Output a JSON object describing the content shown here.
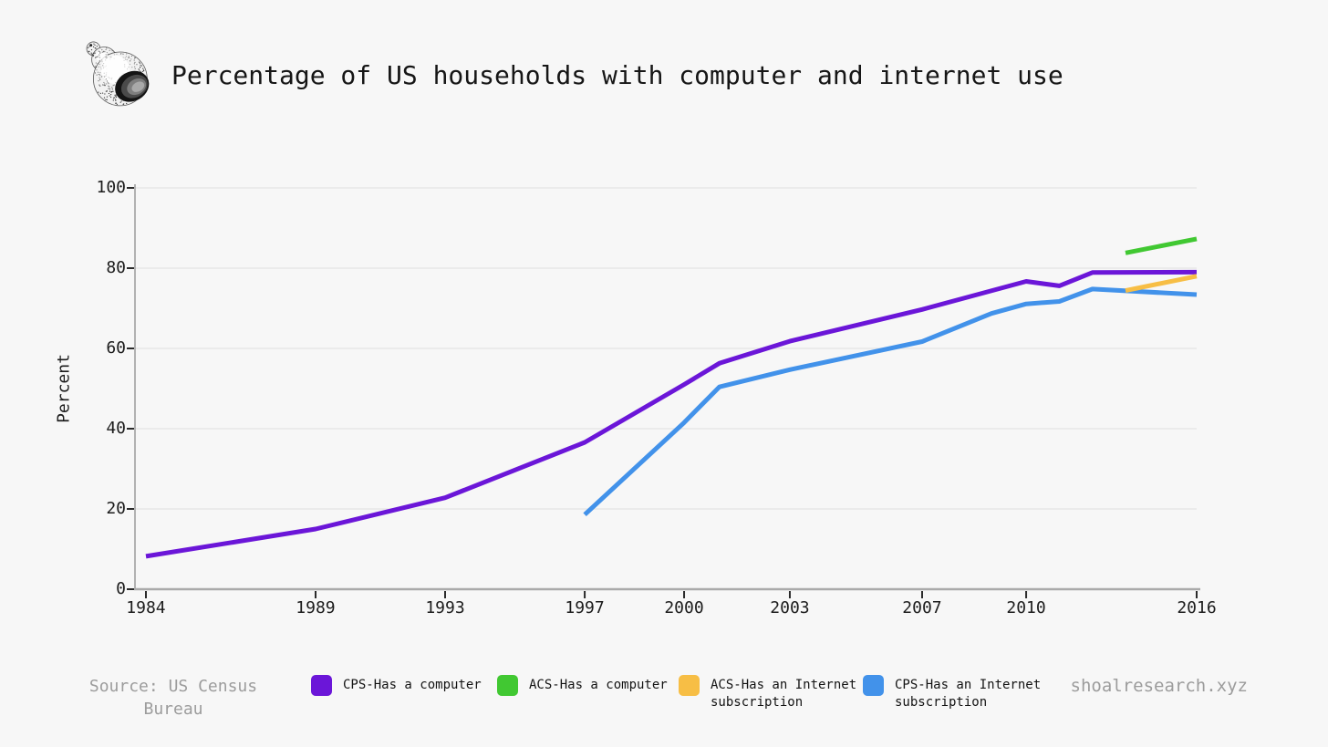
{
  "page": {
    "background": "#f7f7f7"
  },
  "header": {
    "logo": "shell-icon",
    "title": "Percentage of US households with computer and internet use"
  },
  "chart_data": {
    "type": "line",
    "title": "Percentage of US households with computer and internet use",
    "xlabel": "",
    "ylabel": "Percent",
    "ylim": [
      0,
      100
    ],
    "grid": "horizontal",
    "legend_position": "bottom",
    "y_ticks": [
      0,
      20,
      40,
      60,
      80,
      100
    ],
    "x_tick_labels": [
      "1984",
      "1989",
      "1993",
      "1997",
      "2000",
      "2003",
      "2007",
      "2010",
      "2016"
    ],
    "x_tick_fractions": {
      "1984": 0.0103,
      "1989": 0.1701,
      "1993": 0.2921,
      "1997": 0.4236,
      "2000": 0.5172,
      "2003": 0.6168,
      "2007": 0.7414,
      "2010": 0.8394,
      "2013": 0.933,
      "2016": 1.0
    },
    "series": [
      {
        "id": "cps_computer",
        "name": "CPS-Has a computer",
        "color": "#6b16d8",
        "points": [
          [
            1984,
            8.2
          ],
          [
            1989,
            15.0
          ],
          [
            1993,
            22.8
          ],
          [
            1997,
            36.6
          ],
          [
            2000,
            51.0
          ],
          [
            2001,
            56.3
          ],
          [
            2003,
            61.8
          ],
          [
            2007,
            69.7
          ],
          [
            2010,
            76.7
          ],
          [
            2011,
            75.6
          ],
          [
            2012,
            78.9
          ],
          [
            2016,
            79.0
          ]
        ]
      },
      {
        "id": "acs_computer",
        "name": "ACS-Has a computer",
        "color": "#41c832",
        "points": [
          [
            2013,
            83.8
          ],
          [
            2016,
            87.3
          ]
        ]
      },
      {
        "id": "acs_internet",
        "name": "ACS-Has an Internet subscription",
        "color": "#f7be45",
        "points": [
          [
            2013,
            74.4
          ],
          [
            2016,
            78.0
          ]
        ]
      },
      {
        "id": "cps_internet",
        "name": "CPS-Has an Internet subscription",
        "color": "#4292ea",
        "points": [
          [
            1997,
            18.6
          ],
          [
            2000,
            41.5
          ],
          [
            2001,
            50.4
          ],
          [
            2003,
            54.7
          ],
          [
            2007,
            61.7
          ],
          [
            2009,
            68.7
          ],
          [
            2010,
            71.1
          ],
          [
            2011,
            71.7
          ],
          [
            2012,
            74.8
          ],
          [
            2016,
            73.4
          ]
        ]
      }
    ]
  },
  "footer": {
    "source": "Source: US Census Bureau",
    "site": "shoalresearch.xyz"
  }
}
